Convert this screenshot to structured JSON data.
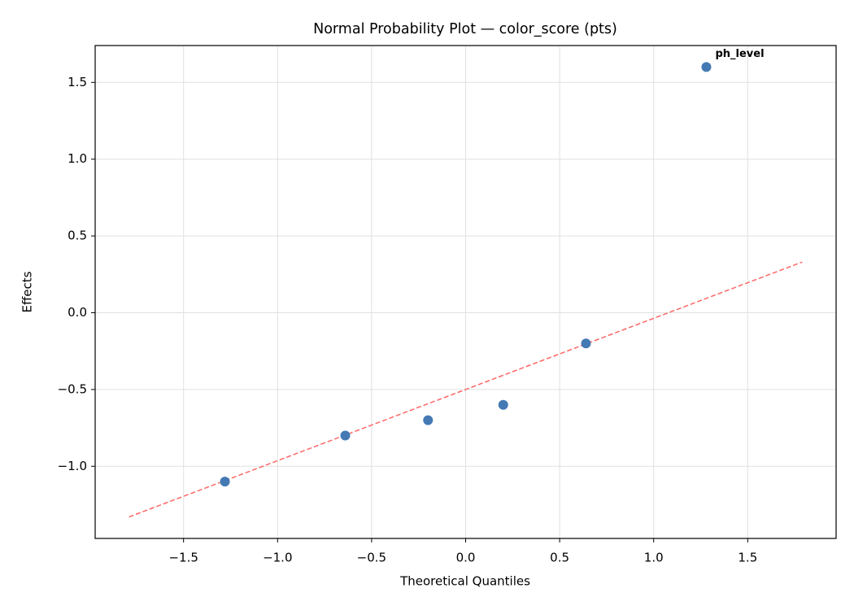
{
  "chart_data": {
    "type": "scatter",
    "title": "Normal Probability Plot — color_score (pts)",
    "x_label": "Theoretical Quantiles",
    "y_label": "Effects",
    "series": [
      {
        "name": "effects",
        "color": "#4479b4",
        "x": [
          -1.28,
          -0.64,
          -0.2,
          0.2,
          0.64,
          1.28
        ],
        "values": [
          -1.1,
          -0.8,
          -0.7,
          -0.6,
          -0.2,
          1.6
        ],
        "point_labels": [
          null,
          null,
          null,
          null,
          null,
          "ph_level"
        ],
        "label_color": "#ff0000"
      }
    ],
    "reference_line": {
      "x": [
        -1.79,
        1.79
      ],
      "y": [
        -1.33,
        0.33
      ],
      "color": "#ff6666"
    },
    "xlim": [
      -1.97,
      1.97
    ],
    "ylim": [
      -1.47,
      1.74
    ],
    "xticks": [
      {
        "value": -1.5,
        "label": "−1.5"
      },
      {
        "value": -1,
        "label": "−1.0"
      },
      {
        "value": -0.5,
        "label": "−0.5"
      },
      {
        "value": 0,
        "label": "0.0"
      },
      0.5,
      {
        "value": 1,
        "label": "1.0"
      },
      1.5
    ],
    "yticks": [
      {
        "value": -1,
        "label": "−1.0"
      },
      {
        "value": -0.5,
        "label": "−0.5"
      },
      {
        "value": 0,
        "label": "0.0"
      },
      0.5,
      {
        "value": 1,
        "label": "1.0"
      },
      1.5
    ],
    "grid": true
  }
}
